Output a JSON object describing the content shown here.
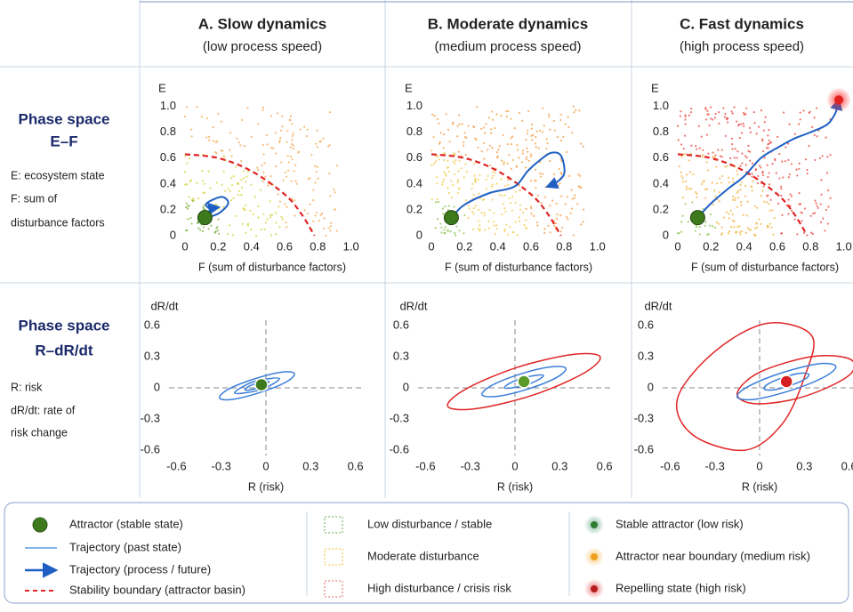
{
  "columns": [
    {
      "title": "A. Slow dynamics",
      "subtitle": "(low process speed)",
      "color": "#3a7d22"
    },
    {
      "title": "B. Moderate dynamics",
      "subtitle": "(medium process speed)",
      "color": "#ef8f1c"
    },
    {
      "title": "C. Fast dynamics",
      "subtitle": "(high process speed)",
      "color": "#d61f1f"
    }
  ],
  "rows": [
    {
      "title": "Phase space",
      "subtitle": "E–F",
      "notes": [
        "E: ecosystem state",
        "F: sum of",
        "disturbance factors"
      ]
    },
    {
      "title": "Phase space",
      "subtitle": "R–dR/dt",
      "notes": [
        "R: risk",
        "dR/dt: rate of",
        "risk change"
      ]
    }
  ],
  "chart_data": [
    {
      "type": "trajectory",
      "disturbance": "low",
      "xlabel": "F (sum of disturbance factors)",
      "ylabel": "E",
      "xlim": [
        0,
        1.05
      ],
      "ylim": [
        0,
        1.1
      ],
      "xticks": [
        0,
        0.2,
        0.4,
        0.6,
        0.8,
        {
          "value": 1,
          "label": "1.0"
        }
      ],
      "yticks": [
        0,
        0.2,
        0.4,
        0.6,
        0.8,
        {
          "value": 1,
          "label": "1.0"
        }
      ],
      "boundary": {
        "color": "#e02424",
        "x": [
          0,
          0.2,
          0.4,
          0.6,
          0.7,
          0.78
        ],
        "y": [
          0.63,
          0.6,
          0.5,
          0.32,
          0.17,
          0
        ]
      },
      "trajectory": {
        "color": "#1f5fc4",
        "x": [
          0.12,
          0.2,
          0.26,
          0.22,
          0.13,
          0.15,
          0.2
        ],
        "y": [
          0.14,
          0.17,
          0.25,
          0.3,
          0.25,
          0.21,
          0.22
        ]
      },
      "attractor": {
        "color": "#3d7a1e",
        "x": 0.12,
        "y": 0.14
      }
    },
    {
      "type": "trajectory",
      "disturbance": "medium",
      "xlabel": "F (sum of disturbance factors)",
      "ylabel": "E",
      "xlim": [
        0,
        1.05
      ],
      "ylim": [
        0,
        1.1
      ],
      "xticks": [
        0,
        0.2,
        0.4,
        0.6,
        0.8,
        {
          "value": 1,
          "label": "1.0"
        }
      ],
      "yticks": [
        0,
        0.2,
        0.4,
        0.6,
        0.8,
        {
          "value": 1,
          "label": "1.0"
        }
      ],
      "boundary": {
        "color": "#e02424",
        "x": [
          0,
          0.2,
          0.4,
          0.6,
          0.7,
          0.78
        ],
        "y": [
          0.63,
          0.6,
          0.5,
          0.32,
          0.17,
          0
        ]
      },
      "trajectory": {
        "color": "#1f5fc4",
        "x": [
          0.12,
          0.2,
          0.35,
          0.5,
          0.58,
          0.65,
          0.72,
          0.78,
          0.8,
          0.74,
          0.7
        ],
        "y": [
          0.14,
          0.24,
          0.33,
          0.38,
          0.5,
          0.58,
          0.64,
          0.62,
          0.48,
          0.4,
          0.38
        ]
      },
      "attractor": {
        "color": "#3d7a1e",
        "x": 0.12,
        "y": 0.14
      }
    },
    {
      "type": "trajectory",
      "disturbance": "high",
      "xlabel": "F (sum of disturbance factors)",
      "ylabel": "E",
      "xlim": [
        0,
        1.05
      ],
      "ylim": [
        0,
        1.1
      ],
      "xticks": [
        0,
        0.2,
        0.4,
        0.6,
        0.8,
        {
          "value": 1,
          "label": "1.0"
        }
      ],
      "yticks": [
        0,
        0.2,
        0.4,
        0.6,
        0.8,
        {
          "value": 1,
          "label": "1.0"
        }
      ],
      "boundary": {
        "color": "#e02424",
        "x": [
          0,
          0.2,
          0.4,
          0.6,
          0.7,
          0.78
        ],
        "y": [
          0.63,
          0.6,
          0.5,
          0.32,
          0.17,
          0
        ]
      },
      "trajectory": {
        "color": "#1f5fc4",
        "x": [
          0.12,
          0.2,
          0.3,
          0.4,
          0.5,
          0.6,
          0.7,
          0.8,
          0.9,
          0.95,
          0.97
        ],
        "y": [
          0.14,
          0.25,
          0.36,
          0.46,
          0.6,
          0.68,
          0.75,
          0.8,
          0.86,
          0.95,
          1.05
        ]
      },
      "attractor": {
        "color": "#3d7a1e",
        "x": 0.12,
        "y": 0.14
      },
      "repeller": {
        "color": "#e0201c",
        "x": 0.97,
        "y": 1.05
      }
    },
    {
      "type": "orbit",
      "xlabel": "R (risk)",
      "ylabel": "dR/dt",
      "xlim": [
        -0.65,
        0.65
      ],
      "ylim": [
        -0.65,
        0.65
      ],
      "xticks": [
        -0.6,
        -0.3,
        0,
        0.3,
        0.6
      ],
      "yticks": [
        -0.6,
        -0.3,
        0,
        0.3,
        0.6
      ],
      "loops": [
        {
          "color": "#3b7fd9",
          "x": [
            0.19,
            0.1,
            -0.09,
            -0.26,
            -0.31,
            -0.22,
            -0.03,
            0.14
          ],
          "y": [
            0.14,
            0.15,
            0.08,
            -0.02,
            -0.1,
            -0.11,
            -0.04,
            0.06
          ]
        },
        {
          "color": "#3b7fd9",
          "x": [
            0.09,
            0.03,
            -0.08,
            -0.17,
            -0.21,
            -0.15,
            -0.04,
            0.05
          ],
          "y": [
            0.09,
            0.09,
            0.06,
            0,
            -0.05,
            -0.05,
            -0.02,
            0.04
          ]
        },
        {
          "color": "#3b7fd9",
          "x": [
            0.02,
            -0.01,
            -0.07,
            -0.12,
            -0.14,
            -0.11,
            -0.05,
            0
          ],
          "y": [
            0.06,
            0.06,
            0.04,
            0.01,
            -0.02,
            -0.02,
            0,
            0.03
          ]
        }
      ],
      "attractor": {
        "color": "#3d7a1e",
        "x": -0.03,
        "y": 0.03
      }
    },
    {
      "type": "orbit",
      "xlabel": "R (risk)",
      "ylabel": "dR/dt",
      "xlim": [
        -0.65,
        0.65
      ],
      "ylim": [
        -0.65,
        0.65
      ],
      "xticks": [
        -0.6,
        -0.3,
        0,
        0.3,
        0.6
      ],
      "yticks": [
        -0.6,
        -0.3,
        0,
        0.3,
        0.6
      ],
      "loops": [
        {
          "color": "#e02424",
          "x": [
            0.57,
            0.38,
            0,
            -0.34,
            -0.45,
            -0.26,
            0.12,
            0.46
          ],
          "y": [
            0.3,
            0.32,
            0.19,
            -0.02,
            -0.18,
            -0.2,
            -0.07,
            0.14
          ]
        },
        {
          "color": "#3b7fd9",
          "x": [
            0.34,
            0.23,
            0.03,
            -0.16,
            -0.22,
            -0.11,
            0.09,
            0.28
          ],
          "y": [
            0.19,
            0.2,
            0.13,
            0.02,
            -0.07,
            -0.08,
            -0.01,
            0.1
          ]
        },
        {
          "color": "#3b7fd9",
          "x": [
            0.19,
            0.14,
            0.04,
            -0.04,
            -0.07,
            -0.02,
            0.08,
            0.16
          ],
          "y": [
            0.12,
            0.12,
            0.09,
            0.04,
            0,
            0,
            0.03,
            0.08
          ]
        }
      ],
      "attractor": {
        "color": "#5a9a2a",
        "x": 0.06,
        "y": 0.06
      }
    },
    {
      "type": "orbit",
      "xlabel": "R (risk)",
      "ylabel": "dR/dt",
      "xlim": [
        -0.65,
        0.65
      ],
      "ylim": [
        -0.65,
        0.65
      ],
      "xticks": [
        -0.6,
        -0.3,
        0,
        0.3,
        0.6
      ],
      "yticks": [
        -0.6,
        -0.3,
        0,
        0.3,
        0.6
      ],
      "loops": [
        {
          "color": "#e02424",
          "x": [
            0.35,
            0.05,
            -0.3,
            -0.55,
            -0.45,
            -0.1,
            0.15,
            0.3
          ],
          "y": [
            0.5,
            0.62,
            0.35,
            -0.1,
            -0.45,
            -0.6,
            -0.35,
            0.1
          ]
        },
        {
          "color": "#e02424",
          "x": [
            0.6,
            0.35,
            0,
            -0.15,
            -0.05,
            0.2,
            0.45,
            0.62
          ],
          "y": [
            0.28,
            0.3,
            0.15,
            -0.05,
            -0.15,
            -0.12,
            0,
            0.15
          ]
        },
        {
          "color": "#3b7fd9",
          "x": [
            0.51,
            0.39,
            0.14,
            -0.08,
            -0.15,
            -0.03,
            0.22,
            0.44
          ],
          "y": [
            0.21,
            0.23,
            0.14,
            0.01,
            -0.09,
            -0.11,
            -0.02,
            0.11
          ]
        },
        {
          "color": "#3b7fd9",
          "x": [
            0.33,
            0.27,
            0.16,
            0.06,
            0.03,
            0.09,
            0.2,
            0.3
          ],
          "y": [
            0.13,
            0.14,
            0.1,
            0.04,
            -0.01,
            -0.02,
            0.02,
            0.08
          ]
        }
      ],
      "attractor": {
        "color": "#d61f1f",
        "x": 0.18,
        "y": 0.06
      }
    }
  ],
  "legend": {
    "columns": [
      [
        "Attractor (stable state)",
        "Trajectory (past state)",
        "Trajectory (process / future)",
        "Stability boundary (attractor basin)"
      ],
      [
        "Low disturbance / stable",
        "Moderate disturbance",
        "High disturbance / crisis risk"
      ],
      [
        "Stable attractor (low risk)",
        "Attractor near boundary (medium risk)",
        "Repelling state (high risk)"
      ]
    ]
  }
}
